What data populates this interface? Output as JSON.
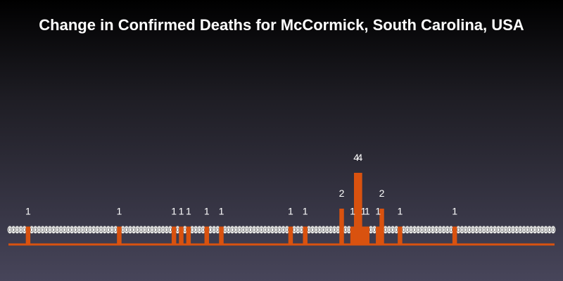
{
  "chart_data": {
    "type": "bar",
    "title": "Change in Confirmed Deaths for McCormick, South Carolina, USA",
    "xlabel": "",
    "ylabel": "",
    "ylim": [
      0,
      4
    ],
    "n_days": 150,
    "nonzero": [
      {
        "day": 5,
        "value": 1
      },
      {
        "day": 30,
        "value": 1
      },
      {
        "day": 45,
        "value": 1
      },
      {
        "day": 47,
        "value": 1
      },
      {
        "day": 49,
        "value": 1
      },
      {
        "day": 54,
        "value": 1
      },
      {
        "day": 58,
        "value": 1
      },
      {
        "day": 77,
        "value": 1
      },
      {
        "day": 81,
        "value": 1
      },
      {
        "day": 91,
        "value": 2
      },
      {
        "day": 94,
        "value": 1
      },
      {
        "day": 95,
        "value": 4
      },
      {
        "day": 96,
        "value": 4
      },
      {
        "day": 97,
        "value": 1
      },
      {
        "day": 98,
        "value": 1
      },
      {
        "day": 101,
        "value": 1
      },
      {
        "day": 102,
        "value": 2
      },
      {
        "day": 107,
        "value": 1
      },
      {
        "day": 122,
        "value": 1
      }
    ],
    "zero_label": "0",
    "colors": {
      "bar": "#d9520f",
      "label": "#ffffff",
      "title": "#ffffff"
    },
    "grid": false,
    "legend": "none"
  }
}
